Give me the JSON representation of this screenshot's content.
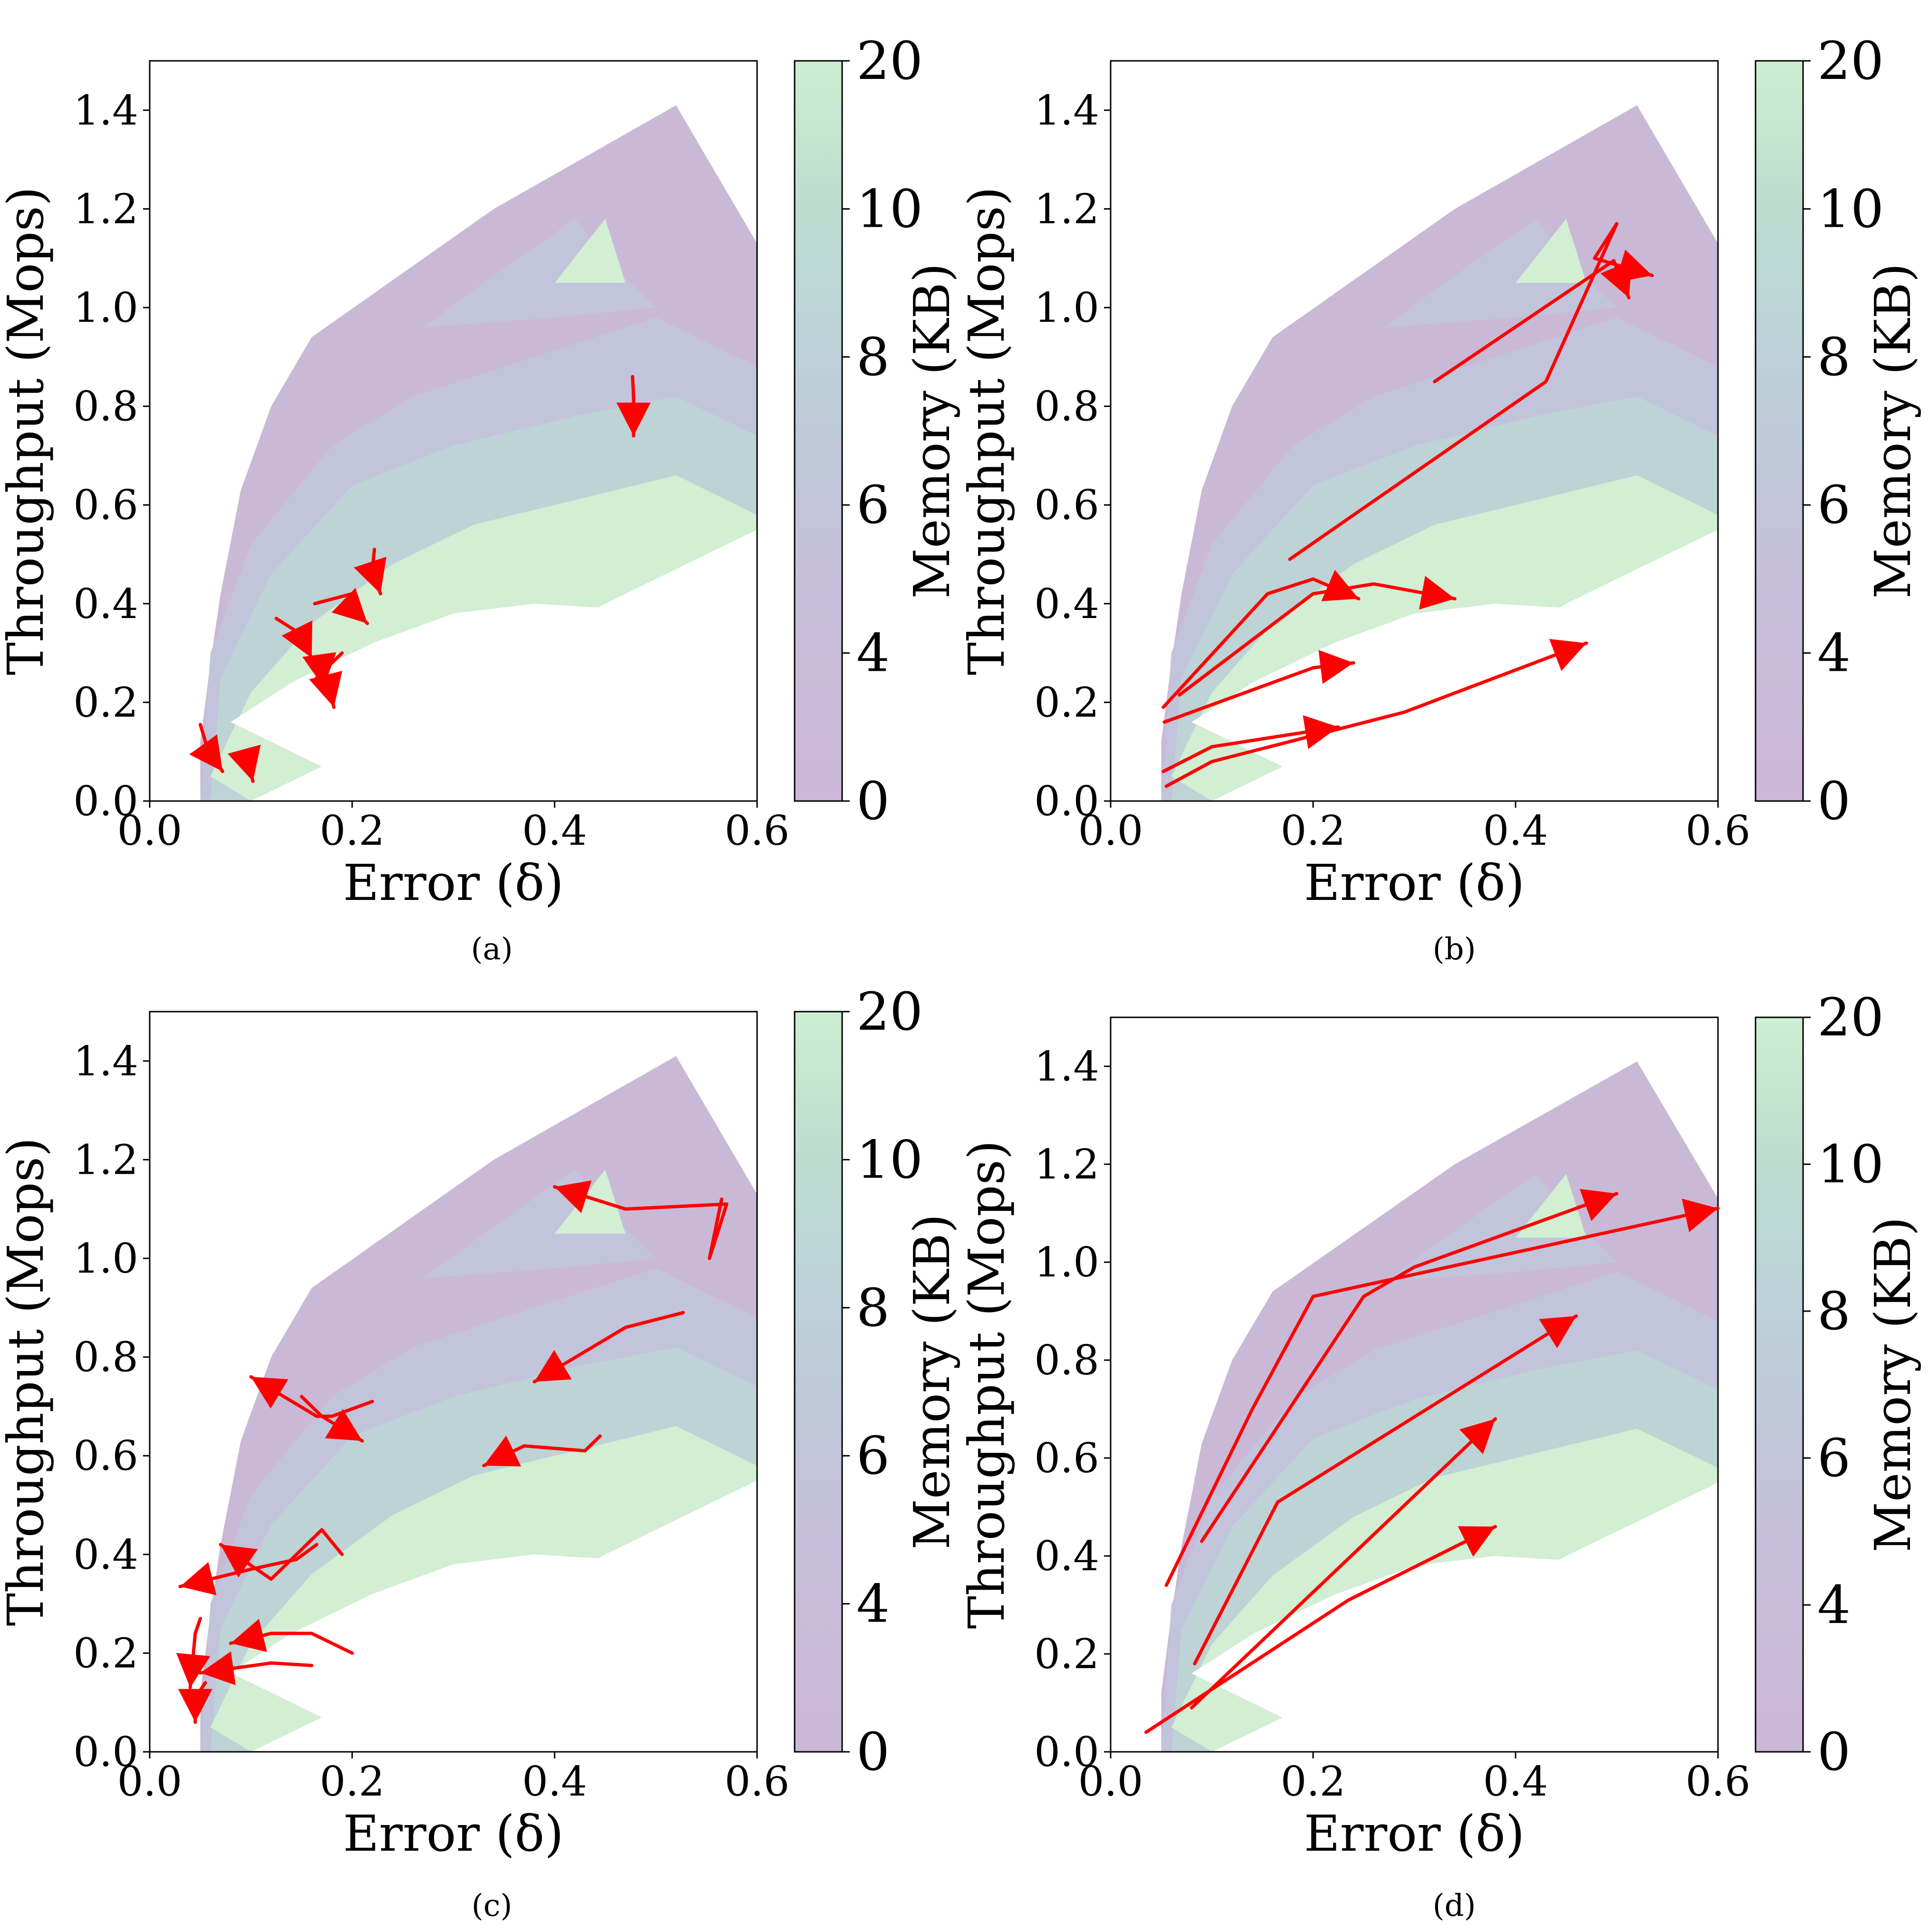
{
  "chart_data": [
    {
      "type": "contour",
      "panel_label": "(a)",
      "xlabel": "Error (δ)",
      "ylabel": "Throughput (Mops)",
      "xlim": [
        0.0,
        0.6
      ],
      "ylim": [
        0.0,
        1.5
      ],
      "x_ticks": [
        "0.0",
        "0.2",
        "0.4",
        "0.6"
      ],
      "y_ticks": [
        "0.0",
        "0.2",
        "0.4",
        "0.6",
        "0.8",
        "1.0",
        "1.2",
        "1.4"
      ],
      "colorbar": {
        "label": "Memory (KB)",
        "ticks": [
          "0",
          "4",
          "6",
          "8",
          "10",
          "20"
        ]
      },
      "trajectories": [
        {
          "points": [
            [
              0.477,
              0.86
            ],
            [
              0.478,
              0.82
            ],
            [
              0.478,
              0.74
            ]
          ]
        },
        {
          "points": [
            [
              0.222,
              0.51
            ],
            [
              0.22,
              0.47
            ],
            [
              0.228,
              0.42
            ]
          ]
        },
        {
          "points": [
            [
              0.163,
              0.4
            ],
            [
              0.2,
              0.42
            ],
            [
              0.205,
              0.38
            ],
            [
              0.215,
              0.36
            ]
          ]
        },
        {
          "points": [
            [
              0.125,
              0.37
            ],
            [
              0.148,
              0.34
            ],
            [
              0.16,
              0.29
            ]
          ]
        },
        {
          "points": [
            [
              0.19,
              0.3
            ],
            [
              0.17,
              0.26
            ],
            [
              0.172,
              0.23
            ]
          ]
        },
        {
          "points": [
            [
              0.165,
              0.25
            ],
            [
              0.177,
              0.23
            ],
            [
              0.182,
              0.19
            ]
          ]
        },
        {
          "points": [
            [
              0.05,
              0.155
            ],
            [
              0.058,
              0.1
            ],
            [
              0.072,
              0.06
            ]
          ]
        },
        {
          "points": [
            [
              0.085,
              0.095
            ],
            [
              0.098,
              0.07
            ],
            [
              0.102,
              0.04
            ]
          ]
        }
      ]
    },
    {
      "type": "contour",
      "panel_label": "(b)",
      "xlabel": "Error (δ)",
      "ylabel": "Throughput (Mops)",
      "xlim": [
        0.0,
        0.6
      ],
      "ylim": [
        0.0,
        1.5
      ],
      "x_ticks": [
        "0.0",
        "0.2",
        "0.4",
        "0.6"
      ],
      "y_ticks": [
        "0.0",
        "0.2",
        "0.4",
        "0.6",
        "0.8",
        "1.0",
        "1.2",
        "1.4"
      ],
      "colorbar": {
        "label": "Memory (KB)",
        "ticks": [
          "0",
          "4",
          "6",
          "8",
          "10",
          "20"
        ]
      },
      "trajectories": [
        {
          "points": [
            [
              0.32,
              0.85
            ],
            [
              0.497,
              1.095
            ],
            [
              0.512,
              1.02
            ]
          ]
        },
        {
          "points": [
            [
              0.177,
              0.49
            ],
            [
              0.43,
              0.85
            ],
            [
              0.5,
              1.17
            ],
            [
              0.478,
              1.1
            ],
            [
              0.535,
              1.065
            ]
          ]
        },
        {
          "points": [
            [
              0.052,
              0.19
            ],
            [
              0.155,
              0.42
            ],
            [
              0.2,
              0.45
            ],
            [
              0.245,
              0.41
            ]
          ]
        },
        {
          "points": [
            [
              0.068,
              0.215
            ],
            [
              0.2,
              0.42
            ],
            [
              0.26,
              0.44
            ],
            [
              0.34,
              0.41
            ]
          ]
        },
        {
          "points": [
            [
              0.053,
              0.16
            ],
            [
              0.2,
              0.27
            ],
            [
              0.24,
              0.28
            ]
          ]
        },
        {
          "points": [
            [
              0.052,
              0.06
            ],
            [
              0.1,
              0.11
            ],
            [
              0.225,
              0.15
            ]
          ]
        },
        {
          "points": [
            [
              0.055,
              0.03
            ],
            [
              0.1,
              0.08
            ],
            [
              0.29,
              0.18
            ],
            [
              0.47,
              0.32
            ]
          ]
        }
      ]
    },
    {
      "type": "contour",
      "panel_label": "(c)",
      "xlabel": "Error (δ)",
      "ylabel": "Throughput (Mops)",
      "xlim": [
        0.0,
        0.6
      ],
      "ylim": [
        0.0,
        1.5
      ],
      "x_ticks": [
        "0.0",
        "0.2",
        "0.4",
        "0.6"
      ],
      "y_ticks": [
        "0.0",
        "0.2",
        "0.4",
        "0.6",
        "0.8",
        "1.0",
        "1.2",
        "1.4"
      ],
      "colorbar": {
        "label": "Memory (KB)",
        "ticks": [
          "0",
          "4",
          "6",
          "8",
          "10",
          "20"
        ]
      },
      "trajectories": [
        {
          "points": [
            [
              0.565,
              1.12
            ],
            [
              0.553,
              1.0
            ],
            [
              0.57,
              1.11
            ],
            [
              0.47,
              1.1
            ],
            [
              0.4,
              1.145
            ]
          ]
        },
        {
          "points": [
            [
              0.527,
              0.89
            ],
            [
              0.47,
              0.86
            ],
            [
              0.38,
              0.75
            ]
          ]
        },
        {
          "points": [
            [
              0.22,
              0.71
            ],
            [
              0.18,
              0.68
            ],
            [
              0.165,
              0.68
            ],
            [
              0.1,
              0.76
            ]
          ]
        },
        {
          "points": [
            [
              0.15,
              0.72
            ],
            [
              0.17,
              0.68
            ],
            [
              0.21,
              0.63
            ]
          ]
        },
        {
          "points": [
            [
              0.445,
              0.64
            ],
            [
              0.43,
              0.61
            ],
            [
              0.37,
              0.62
            ],
            [
              0.33,
              0.58
            ]
          ]
        },
        {
          "points": [
            [
              0.19,
              0.4
            ],
            [
              0.17,
              0.45
            ],
            [
              0.12,
              0.35
            ],
            [
              0.07,
              0.42
            ]
          ]
        },
        {
          "points": [
            [
              0.165,
              0.42
            ],
            [
              0.145,
              0.39
            ],
            [
              0.1,
              0.37
            ],
            [
              0.03,
              0.335
            ]
          ]
        },
        {
          "points": [
            [
              0.2,
              0.2
            ],
            [
              0.16,
              0.24
            ],
            [
              0.12,
              0.24
            ],
            [
              0.08,
              0.22
            ]
          ]
        },
        {
          "points": [
            [
              0.16,
              0.175
            ],
            [
              0.12,
              0.18
            ],
            [
              0.05,
              0.16
            ]
          ]
        },
        {
          "points": [
            [
              0.05,
              0.27
            ],
            [
              0.045,
              0.24
            ],
            [
              0.04,
              0.13
            ]
          ]
        },
        {
          "points": [
            [
              0.055,
              0.14
            ],
            [
              0.045,
              0.11
            ],
            [
              0.045,
              0.06
            ]
          ]
        }
      ]
    },
    {
      "type": "contour",
      "panel_label": "(d)",
      "xlabel": "Error (δ)",
      "ylabel": "Throughput (Mops)",
      "xlim": [
        0.0,
        0.6
      ],
      "ylim": [
        0.0,
        1.5
      ],
      "x_ticks": [
        "0.0",
        "0.2",
        "0.4",
        "0.6"
      ],
      "y_ticks": [
        "0.0",
        "0.2",
        "0.4",
        "0.6",
        "0.8",
        "1.0",
        "1.2",
        "1.4"
      ],
      "colorbar": {
        "label": "Memory (KB)",
        "ticks": [
          "0",
          "4",
          "6",
          "8",
          "10",
          "20"
        ]
      },
      "trajectories": [
        {
          "points": [
            [
              0.055,
              0.34
            ],
            [
              0.14,
              0.7
            ],
            [
              0.2,
              0.93
            ],
            [
              0.6,
              1.11
            ]
          ]
        },
        {
          "points": [
            [
              0.09,
              0.43
            ],
            [
              0.25,
              0.93
            ],
            [
              0.3,
              0.99
            ],
            [
              0.5,
              1.14
            ]
          ]
        },
        {
          "points": [
            [
              0.083,
              0.18
            ],
            [
              0.165,
              0.51
            ],
            [
              0.46,
              0.89
            ]
          ]
        },
        {
          "points": [
            [
              0.08,
              0.09
            ],
            [
              0.38,
              0.68
            ]
          ]
        },
        {
          "points": [
            [
              0.035,
              0.04
            ],
            [
              0.235,
              0.31
            ],
            [
              0.38,
              0.46
            ]
          ]
        }
      ]
    }
  ]
}
